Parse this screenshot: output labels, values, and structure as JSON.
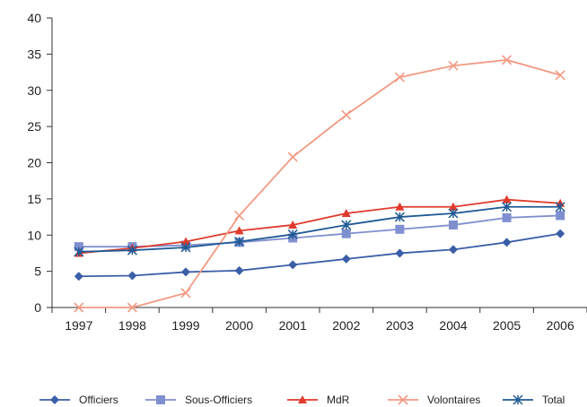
{
  "chart_data": {
    "type": "line",
    "title": "",
    "xlabel": "",
    "ylabel": "",
    "categories": [
      "1997",
      "1998",
      "1999",
      "2000",
      "2001",
      "2002",
      "2003",
      "2004",
      "2005",
      "2006"
    ],
    "ylim": [
      0,
      40
    ],
    "yticks": [
      0,
      5,
      10,
      15,
      20,
      25,
      30,
      35,
      40
    ],
    "grid": false,
    "legend_position": "bottom",
    "series": [
      {
        "name": "Officiers",
        "color": "#3a5ea8",
        "marker": "diamond",
        "values": [
          4.3,
          4.4,
          4.9,
          5.1,
          5.9,
          6.7,
          7.5,
          8.0,
          9.0,
          10.2
        ]
      },
      {
        "name": "Sous-Officiers",
        "color": "#7f8fcf",
        "marker": "square",
        "values": [
          8.4,
          8.4,
          8.6,
          9.0,
          9.6,
          10.2,
          10.8,
          11.4,
          12.4,
          12.7
        ]
      },
      {
        "name": "MdR",
        "color": "#e03a2c",
        "marker": "triangle",
        "values": [
          7.5,
          8.2,
          9.1,
          10.6,
          11.4,
          13.0,
          13.9,
          13.9,
          14.9,
          14.4
        ]
      },
      {
        "name": "Volontaires",
        "color": "#f29a84",
        "marker": "x",
        "values": [
          0.0,
          0.0,
          2.0,
          12.7,
          20.8,
          26.6,
          31.8,
          33.4,
          34.2,
          32.1
        ]
      },
      {
        "name": "Total",
        "color": "#1f5a95",
        "marker": "star",
        "values": [
          7.7,
          7.9,
          8.3,
          9.1,
          10.1,
          11.4,
          12.5,
          13.0,
          13.9,
          13.9
        ]
      }
    ]
  }
}
